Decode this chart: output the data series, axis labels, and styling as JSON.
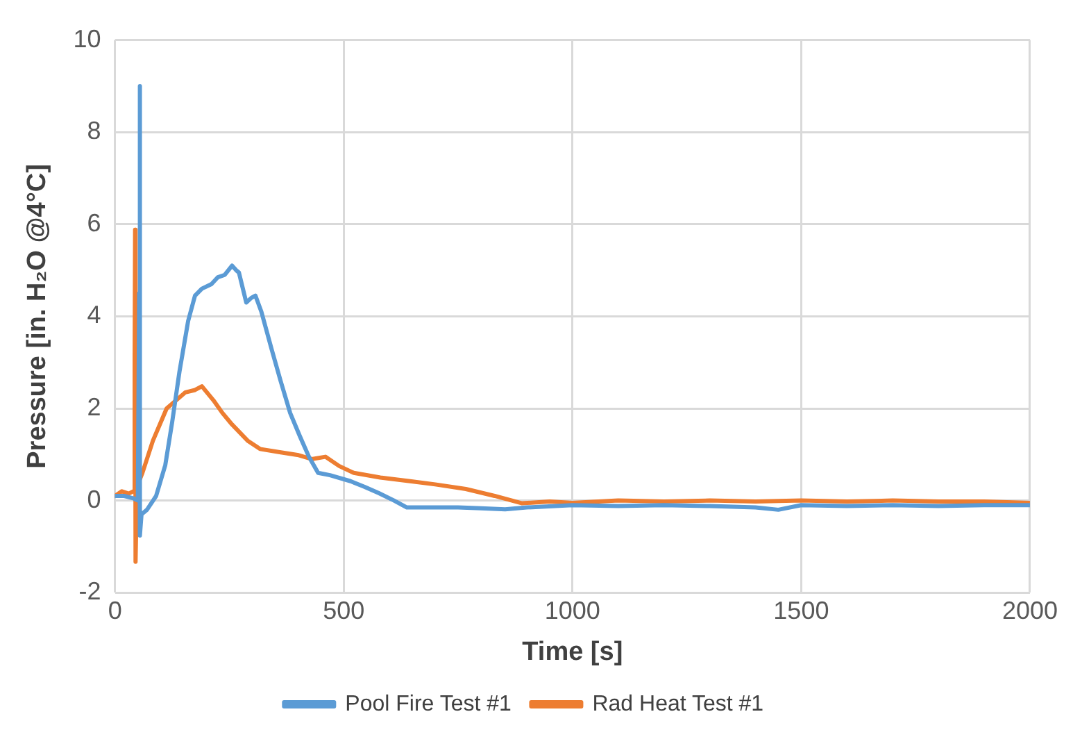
{
  "chart_data": {
    "type": "line",
    "xlabel": "Time [s]",
    "ylabel": "Pressure [in. H₂O @4°C]",
    "xlim": [
      0,
      2000
    ],
    "ylim": [
      -2,
      10
    ],
    "xticks": [
      0,
      500,
      1000,
      1500,
      2000
    ],
    "yticks": [
      -2,
      0,
      2,
      4,
      6,
      8,
      10
    ],
    "grid": true,
    "legend": "bottom",
    "marker": "none",
    "line_style": "solid",
    "series": [
      {
        "name": "Pool Fire Test #1",
        "color": "#5b9bd5",
        "x": [
          0,
          20,
          40,
          50,
          53,
          54,
          55,
          58,
          70,
          90,
          110,
          125,
          141,
          160,
          175,
          190,
          211,
          225,
          240,
          256,
          265,
          271,
          287,
          298,
          307,
          320,
          342,
          362,
          383,
          404,
          424,
          444,
          470,
          515,
          545,
          577,
          610,
          638,
          700,
          750,
          800,
          853,
          900,
          1000,
          1100,
          1200,
          1300,
          1400,
          1450,
          1500,
          1600,
          1700,
          1800,
          1900,
          2000
        ],
        "values": [
          0.1,
          0.1,
          0.05,
          0.0,
          4.5,
          9.0,
          -0.76,
          -0.3,
          -0.2,
          0.1,
          0.77,
          1.7,
          2.8,
          3.9,
          4.45,
          4.6,
          4.7,
          4.85,
          4.9,
          5.1,
          5.0,
          4.95,
          4.3,
          4.4,
          4.45,
          4.1,
          3.3,
          2.6,
          1.9,
          1.4,
          0.95,
          0.6,
          0.55,
          0.42,
          0.3,
          0.16,
          0.0,
          -0.15,
          -0.15,
          -0.15,
          -0.17,
          -0.19,
          -0.15,
          -0.1,
          -0.12,
          -0.1,
          -0.12,
          -0.15,
          -0.2,
          -0.1,
          -0.12,
          -0.1,
          -0.12,
          -0.1,
          -0.1
        ]
      },
      {
        "name": "Rad Heat Test #1",
        "color": "#ed7d31",
        "x": [
          0,
          15,
          30,
          40,
          43,
          44,
          45,
          48,
          60,
          83,
          113,
          154,
          175,
          190,
          215,
          235,
          256,
          290,
          317,
          360,
          399,
          430,
          460,
          490,
          522,
          580,
          645,
          700,
          767,
          830,
          890,
          950,
          1000,
          1100,
          1200,
          1300,
          1400,
          1500,
          1600,
          1700,
          1800,
          1900,
          2000
        ],
        "values": [
          0.1,
          0.2,
          0.15,
          0.2,
          3.0,
          5.88,
          -1.33,
          0.3,
          0.6,
          1.3,
          2.0,
          2.35,
          2.4,
          2.48,
          2.18,
          1.9,
          1.65,
          1.3,
          1.12,
          1.05,
          0.99,
          0.9,
          0.95,
          0.75,
          0.6,
          0.5,
          0.42,
          0.35,
          0.25,
          0.1,
          -0.06,
          -0.02,
          -0.05,
          0.0,
          -0.02,
          0.0,
          -0.02,
          0.0,
          -0.02,
          0.0,
          -0.02,
          -0.02,
          -0.05
        ]
      }
    ]
  }
}
